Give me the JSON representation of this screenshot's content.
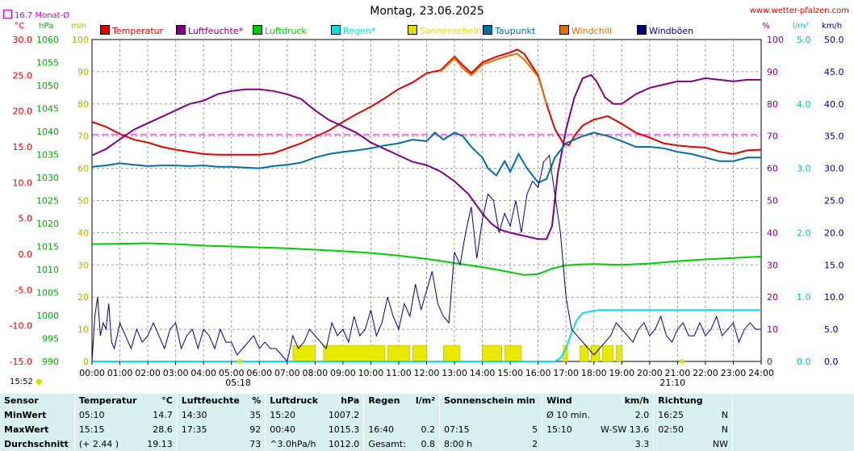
{
  "header": {
    "title": "Montag, 23.06.2025",
    "site": "www.wetter-pfalzen.com",
    "monat_label": "16.7 Monat-Ø",
    "clock": "15:52",
    "sunrise_label": "05:18",
    "sunset_label": "21:10"
  },
  "units": {
    "temp": "°C",
    "hpa": "hPa",
    "min": "min",
    "pct": "%",
    "lm2": "l/m²",
    "kmh": "km/h"
  },
  "legend": [
    {
      "label": "Temperatur",
      "color": "#e00000"
    },
    {
      "label": "Luftfeuchte*",
      "color": "#800080"
    },
    {
      "label": "Luftdruck",
      "color": "#00cc00"
    },
    {
      "label": "Regen*",
      "color": "#00e0e0"
    },
    {
      "label": "Sonnenschein",
      "color": "#e0e000"
    },
    {
      "label": "Taupunkt",
      "color": "#0070a0"
    },
    {
      "label": "Windchill",
      "color": "#e07000"
    },
    {
      "label": "Windböen",
      "color": "#000080"
    }
  ],
  "chart_data": {
    "type": "line",
    "x_unit": "time of day",
    "x_ticks": [
      "00:00",
      "01:00",
      "02:00",
      "03:00",
      "04:00",
      "05:00",
      "06:00",
      "07:00",
      "08:00",
      "09:00",
      "10:00",
      "11:00",
      "12:00",
      "13:00",
      "14:00",
      "15:00",
      "16:00",
      "17:00",
      "18:00",
      "19:00",
      "20:00",
      "21:00",
      "22:00",
      "23:00",
      "24:00"
    ],
    "xlim": [
      0,
      24
    ],
    "axes": {
      "temp": {
        "label": "°C",
        "range": [
          -15,
          30
        ],
        "ticks": [
          "30.0",
          "25.0",
          "20.0",
          "15.0",
          "10.0",
          "5.0",
          "0.0",
          "-5.0",
          "-10.0",
          "-15.0"
        ]
      },
      "pressure": {
        "label": "hPa",
        "range": [
          990,
          1060
        ],
        "ticks": [
          "1060",
          "1055",
          "1050",
          "1045",
          "1040",
          "1035",
          "1030",
          "1025",
          "1020",
          "1015",
          "1010",
          "1005",
          "1000",
          "995",
          "990"
        ]
      },
      "sun": {
        "label": "min",
        "range": [
          0,
          100
        ],
        "ticks": [
          "100",
          "90",
          "80",
          "70",
          "60",
          "50",
          "40",
          "30",
          "20",
          "10",
          "0"
        ]
      },
      "humidity": {
        "label": "%",
        "range": [
          0,
          100
        ],
        "ticks": [
          "100",
          "90",
          "80",
          "70",
          "60",
          "50",
          "40",
          "30",
          "20",
          "10",
          "0"
        ]
      },
      "rain": {
        "label": "l/m²",
        "range": [
          0,
          5
        ],
        "ticks": [
          "5.0",
          "4.0",
          "3.0",
          "2.0",
          "1.0",
          "0.0"
        ]
      },
      "wind": {
        "label": "km/h",
        "range": [
          0,
          50
        ],
        "ticks": [
          "50.0",
          "45.0",
          "40.0",
          "35.0",
          "30.0",
          "25.0",
          "20.0",
          "15.0",
          "10.0",
          "5.0",
          "0.0"
        ]
      }
    },
    "monthly_avg_temp": 16.7,
    "series": [
      {
        "name": "Temperatur",
        "axis": "temp",
        "color": "#e00000",
        "x": [
          0,
          0.5,
          1,
          1.5,
          2,
          2.5,
          3,
          3.5,
          4,
          4.5,
          5,
          5.5,
          6,
          6.5,
          7,
          7.5,
          8,
          8.5,
          9,
          9.5,
          10,
          10.5,
          11,
          11.5,
          12,
          12.5,
          13,
          13.3,
          13.6,
          14,
          14.5,
          15,
          15.25,
          15.5,
          16,
          16.3,
          16.6,
          16.9,
          17.1,
          17.35,
          17.6,
          18,
          18.5,
          19,
          19.5,
          20,
          20.5,
          21,
          21.5,
          22,
          22.5,
          23,
          23.5,
          24
        ],
        "y": [
          18.5,
          17.8,
          16.8,
          16.0,
          15.6,
          15.0,
          14.6,
          14.3,
          14.0,
          13.9,
          13.9,
          13.9,
          13.9,
          14.1,
          14.8,
          15.5,
          16.4,
          17.3,
          18.5,
          19.6,
          20.6,
          21.8,
          23.1,
          24.0,
          25.3,
          25.7,
          27.6,
          26.4,
          25.3,
          26.8,
          27.6,
          28.2,
          28.6,
          28.0,
          25.0,
          21.0,
          17.5,
          15.5,
          15.2,
          16.8,
          18.0,
          18.8,
          19.3,
          18.2,
          17.0,
          16.3,
          15.5,
          15.2,
          15.0,
          14.9,
          14.3,
          14.0,
          14.5,
          14.6
        ]
      },
      {
        "name": "Windchill",
        "axis": "temp",
        "color": "#e07000",
        "x": [
          12.5,
          13,
          13.3,
          13.6,
          14,
          14.5,
          15,
          15.25,
          15.5,
          16,
          16.3
        ],
        "y": [
          25.5,
          27.4,
          26.0,
          25.0,
          26.5,
          27.2,
          27.8,
          28.0,
          27.2,
          24.8,
          21.0
        ]
      },
      {
        "name": "Luftfeuchte*",
        "axis": "humidity",
        "color": "#800080",
        "x": [
          0,
          0.5,
          1,
          1.5,
          2,
          2.5,
          3,
          3.5,
          4,
          4.5,
          5,
          5.5,
          6,
          6.5,
          7,
          7.5,
          8,
          8.5,
          9,
          9.5,
          10,
          10.5,
          11,
          11.5,
          12,
          12.5,
          13,
          13.5,
          14,
          14.3,
          14.6,
          15,
          15.5,
          16,
          16.3,
          16.5,
          16.7,
          17,
          17.3,
          17.6,
          17.9,
          18.1,
          18.4,
          18.7,
          19,
          19.5,
          20,
          20.5,
          21,
          21.5,
          22,
          22.5,
          23,
          23.5,
          24
        ],
        "y": [
          64,
          66,
          69,
          72,
          74,
          76,
          78,
          80,
          81,
          83,
          84,
          84.5,
          84.5,
          84,
          83,
          81.5,
          78,
          75,
          73,
          71,
          68,
          66,
          64,
          62,
          61,
          59,
          56,
          52,
          46,
          43,
          41,
          40,
          39,
          38,
          38,
          42,
          58,
          72,
          82,
          88,
          89,
          87,
          82,
          80,
          80,
          83,
          85,
          86,
          87,
          87,
          88,
          87.5,
          87,
          87.5,
          87.5
        ]
      },
      {
        "name": "Taupunkt",
        "axis": "temp",
        "color": "#0070a0",
        "x": [
          0,
          0.5,
          1,
          1.5,
          2,
          2.5,
          3,
          3.5,
          4,
          4.5,
          5,
          5.5,
          6,
          6.5,
          7,
          7.5,
          8,
          8.5,
          9,
          9.5,
          10,
          10.5,
          11,
          11.5,
          12,
          12.3,
          12.6,
          13,
          13.3,
          13.6,
          14,
          14.2,
          14.5,
          14.8,
          15,
          15.3,
          15.6,
          16,
          16.3,
          16.6,
          17,
          17.3,
          17.6,
          18,
          18.5,
          19,
          19.5,
          20,
          20.5,
          21,
          21.5,
          22,
          22.5,
          23,
          23.5,
          24
        ],
        "y": [
          12.2,
          12.4,
          12.7,
          12.5,
          12.3,
          12.4,
          12.4,
          12.3,
          12.4,
          12.2,
          12.2,
          12.1,
          12.0,
          12.3,
          12.5,
          12.8,
          13.5,
          14.0,
          14.3,
          14.5,
          14.8,
          15.2,
          15.5,
          16.0,
          15.8,
          17.0,
          16.0,
          17.0,
          16.5,
          15.0,
          13.5,
          12.0,
          11.0,
          13.0,
          11.5,
          14.0,
          12.0,
          10.0,
          10.5,
          13.5,
          15.5,
          16.0,
          16.5,
          17.0,
          16.5,
          15.8,
          15.0,
          15.0,
          14.8,
          14.3,
          14.0,
          13.5,
          13.0,
          13.0,
          13.5,
          13.5
        ]
      },
      {
        "name": "Luftdruck",
        "axis": "pressure",
        "color": "#00cc00",
        "x": [
          0,
          1,
          2,
          3,
          4,
          5,
          6,
          7,
          8,
          9,
          10,
          11,
          12,
          13,
          14,
          15,
          15.5,
          16,
          16.5,
          17,
          17.5,
          18,
          19,
          20,
          21,
          22,
          23,
          24
        ],
        "y": [
          1015.5,
          1015.6,
          1015.7,
          1015.5,
          1015.2,
          1015.0,
          1014.8,
          1014.6,
          1014.3,
          1014.0,
          1013.6,
          1013.0,
          1012.3,
          1011.4,
          1010.5,
          1009.4,
          1008.8,
          1009.0,
          1010.2,
          1010.9,
          1011.1,
          1011.2,
          1011.0,
          1011.3,
          1011.8,
          1012.2,
          1012.5,
          1012.8
        ]
      },
      {
        "name": "Regen*",
        "axis": "rain",
        "color": "#00e0e0",
        "x": [
          0,
          16.6,
          16.8,
          17,
          17.2,
          17.4,
          17.6,
          17.9,
          18.2,
          20,
          22,
          24
        ],
        "y": [
          0,
          0,
          0.05,
          0.2,
          0.45,
          0.65,
          0.75,
          0.78,
          0.8,
          0.8,
          0.8,
          0.8
        ]
      },
      {
        "name": "Windböen",
        "axis": "wind",
        "color": "#000080",
        "x": [
          0,
          0.1,
          0.2,
          0.3,
          0.4,
          0.5,
          0.6,
          0.7,
          0.8,
          0.9,
          1.0,
          1.2,
          1.4,
          1.6,
          1.8,
          2.0,
          2.2,
          2.4,
          2.6,
          2.8,
          3.0,
          3.2,
          3.4,
          3.6,
          3.8,
          4.0,
          4.2,
          4.4,
          4.6,
          4.8,
          5.0,
          5.2,
          5.4,
          5.6,
          5.8,
          6.0,
          6.2,
          6.4,
          6.6,
          6.8,
          7.0,
          7.2,
          7.4,
          7.6,
          7.8,
          8.0,
          8.2,
          8.4,
          8.6,
          8.8,
          9.0,
          9.2,
          9.4,
          9.6,
          9.8,
          10.0,
          10.2,
          10.4,
          10.6,
          10.8,
          11.0,
          11.2,
          11.4,
          11.6,
          11.8,
          12.0,
          12.2,
          12.4,
          12.6,
          12.8,
          13.0,
          13.2,
          13.4,
          13.6,
          13.8,
          14.0,
          14.2,
          14.4,
          14.6,
          14.8,
          15.0,
          15.2,
          15.4,
          15.6,
          15.8,
          16.0,
          16.2,
          16.4,
          16.6,
          16.8,
          17.0,
          17.2,
          17.4,
          17.6,
          17.8,
          18.0,
          18.2,
          18.4,
          18.6,
          18.8,
          19.0,
          19.2,
          19.4,
          19.6,
          19.8,
          20.0,
          20.2,
          20.4,
          20.6,
          20.8,
          21.0,
          21.2,
          21.4,
          21.6,
          21.8,
          22.0,
          22.2,
          22.4,
          22.6,
          22.8,
          23.0,
          23.2,
          23.4,
          23.6,
          23.8,
          24.0
        ],
        "y": [
          0,
          7,
          10,
          4,
          6,
          5,
          9,
          3,
          2,
          4,
          6,
          4,
          2,
          5,
          3,
          4,
          6,
          4,
          2,
          5,
          6,
          2,
          4,
          5,
          2,
          5,
          4,
          2,
          5,
          3,
          3,
          1,
          2,
          3,
          4,
          2,
          3,
          2,
          2,
          1,
          0,
          4,
          2,
          3,
          5,
          4,
          3,
          2,
          6,
          4,
          5,
          3,
          7,
          4,
          5,
          8,
          4,
          6,
          10,
          7,
          5,
          9,
          7,
          12,
          8,
          11,
          14,
          9,
          7,
          6,
          17,
          15,
          20,
          24,
          16,
          22,
          26,
          25,
          20,
          23,
          21,
          25,
          20,
          26,
          28,
          27,
          31,
          32,
          26,
          20,
          10,
          5,
          4,
          3,
          2,
          1,
          2,
          3,
          4,
          6,
          5,
          4,
          3,
          5,
          6,
          4,
          5,
          7,
          4,
          3,
          5,
          6,
          4,
          4,
          6,
          4,
          5,
          7,
          4,
          5,
          6,
          3,
          5,
          6,
          5,
          5
        ]
      }
    ],
    "sunshine": {
      "axis": "sun",
      "color": "#e0e000",
      "intervals": [
        [
          7.2,
          8.0
        ],
        [
          8.3,
          10.5
        ],
        [
          10.6,
          11.4
        ],
        [
          11.5,
          12.0
        ],
        [
          12.6,
          13.2
        ],
        [
          14.0,
          14.7
        ],
        [
          14.8,
          15.4
        ],
        [
          16.9,
          17.05
        ],
        [
          17.5,
          17.8
        ],
        [
          17.9,
          18.2
        ],
        [
          18.3,
          18.7
        ],
        [
          18.8,
          19.0
        ]
      ],
      "height": 5
    },
    "sunrise_h": 5.3,
    "sunset_h": 21.17,
    "grid": true
  },
  "stats": {
    "headers": [
      "Sensor",
      "Temperatur",
      "°C",
      "Luftfeuchte",
      "%",
      "Luftdruck",
      "hPa",
      "Regen",
      "l/m²",
      "Sonnenschein min",
      "Wind",
      "km/h",
      "Richtung"
    ],
    "rows": [
      [
        "MinWert",
        "05:10",
        "14.7",
        "14:30",
        "35",
        "15:20",
        "1007.2",
        "",
        "",
        "",
        "Ø 10 min.",
        "2.0",
        "16:25",
        "N"
      ],
      [
        "MaxWert",
        "15:15",
        "28.6",
        "17:35",
        "92",
        "00:40",
        "1015.3",
        "16:40",
        "0.2",
        "07:15",
        "5",
        "15:10",
        "W-SW 13.6",
        "02:50",
        "N"
      ],
      [
        "Durchschnitt",
        "(+ 2.44 )",
        "19.13",
        "",
        "73",
        "^3.0hPa/h",
        "1012.0",
        "Gesamt:",
        "0.8",
        "8:00 h",
        "2",
        "",
        "3.3",
        "",
        "NW"
      ]
    ]
  }
}
